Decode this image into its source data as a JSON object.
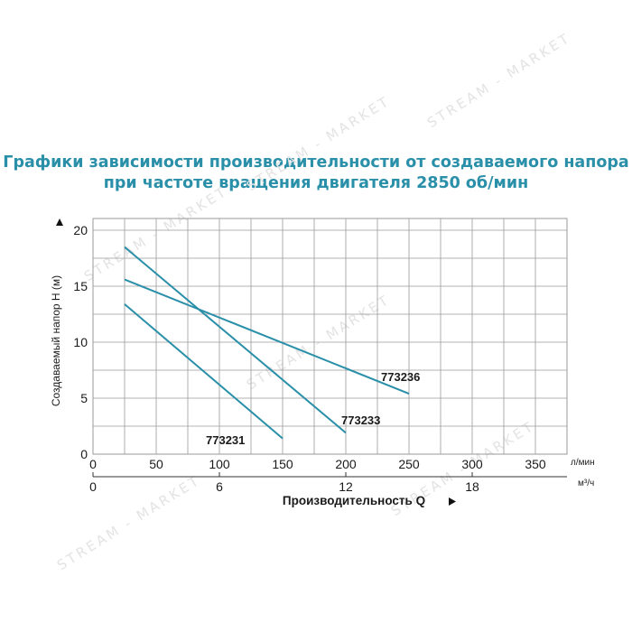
{
  "title_line1": "Графики зависимости производительности от создаваемого напора",
  "title_line2": "при частоте вращения двигателя 2850 об/мин",
  "watermark": "STREAM - MARKET",
  "colors": {
    "title": "#2a8fa8",
    "series": "#2a8fa8",
    "grid": "#9a9a9a",
    "text": "#1a1a1a"
  },
  "chart_data": {
    "type": "line",
    "title": "Графики зависимости производительности от создаваемого напора при частоте вращения двигателя 2850 об/мин",
    "ylabel": "Создаваемый напор H (м)",
    "ylim": [
      0,
      20
    ],
    "yticks": [
      0,
      5,
      10,
      15,
      20
    ],
    "xlabel": "Производительность Q",
    "x_axis_primary": {
      "unit": "л/мин",
      "lim": [
        0,
        375
      ],
      "ticks": [
        0,
        50,
        100,
        150,
        200,
        250,
        300,
        350
      ]
    },
    "x_axis_secondary": {
      "unit": "м³/ч",
      "ticks": [
        0,
        6,
        12,
        18
      ]
    },
    "grid": true,
    "series": [
      {
        "name": "773231",
        "x": [
          25,
          150
        ],
        "y": [
          13.4,
          1.4
        ]
      },
      {
        "name": "773233",
        "x": [
          25,
          200
        ],
        "y": [
          18.5,
          1.9
        ]
      },
      {
        "name": "773236",
        "x": [
          25,
          250
        ],
        "y": [
          15.6,
          5.4
        ]
      }
    ]
  }
}
